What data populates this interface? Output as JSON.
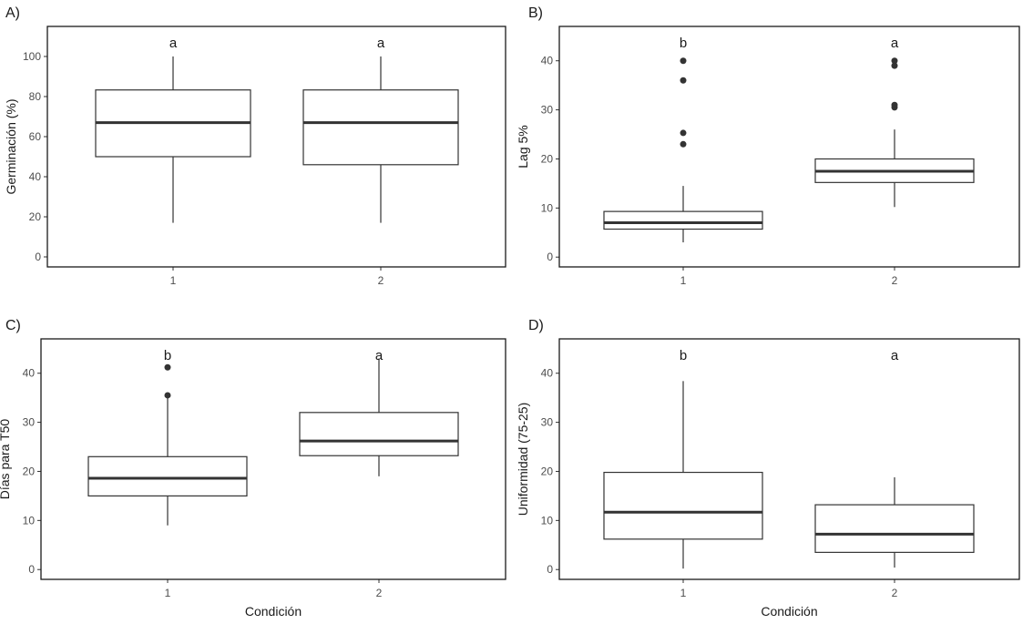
{
  "chart_data": [
    {
      "panel": "A)",
      "type": "boxplot",
      "ylabel": "Germinación (%)",
      "xlabel": "",
      "categories": [
        "1",
        "2"
      ],
      "ylim": [
        -5,
        115
      ],
      "yticks": [
        0,
        20,
        40,
        60,
        80,
        100
      ],
      "boxes": [
        {
          "category": "1",
          "whisker_low": 17,
          "q1": 50,
          "median": 67,
          "q3": 83.3,
          "whisker_high": 100,
          "outliers": [],
          "letter": "a"
        },
        {
          "category": "2",
          "whisker_low": 17,
          "q1": 46,
          "median": 67,
          "q3": 83.3,
          "whisker_high": 100,
          "outliers": [],
          "letter": "a"
        }
      ]
    },
    {
      "panel": "B)",
      "type": "boxplot",
      "ylabel": "Lag 5%",
      "xlabel": "",
      "categories": [
        "1",
        "2"
      ],
      "ylim": [
        -2,
        47
      ],
      "yticks": [
        0,
        10,
        20,
        30,
        40
      ],
      "boxes": [
        {
          "category": "1",
          "whisker_low": 3,
          "q1": 5.7,
          "median": 7,
          "q3": 9.3,
          "whisker_high": 14.5,
          "outliers": [
            23,
            25.3,
            36,
            40
          ],
          "letter": "b"
        },
        {
          "category": "2",
          "whisker_low": 10.2,
          "q1": 15.2,
          "median": 17.5,
          "q3": 20,
          "whisker_high": 26,
          "outliers": [
            30.5,
            31,
            39,
            40
          ],
          "letter": "a"
        }
      ]
    },
    {
      "panel": "C)",
      "type": "boxplot",
      "ylabel": "Días para T50",
      "xlabel": "Condición",
      "categories": [
        "1",
        "2"
      ],
      "ylim": [
        -2,
        47
      ],
      "yticks": [
        0,
        10,
        20,
        30,
        40
      ],
      "boxes": [
        {
          "category": "1",
          "whisker_low": 9,
          "q1": 15,
          "median": 18.6,
          "q3": 23,
          "whisker_high": 35.5,
          "outliers": [
            35.5,
            41.2
          ],
          "letter": "b"
        },
        {
          "category": "2",
          "whisker_low": 19,
          "q1": 23.2,
          "median": 26.2,
          "q3": 32,
          "whisker_high": 43,
          "outliers": [],
          "letter": "a"
        }
      ]
    },
    {
      "panel": "D)",
      "type": "boxplot",
      "ylabel": "Uniformidad (75-25)",
      "xlabel": "Condición",
      "categories": [
        "1",
        "2"
      ],
      "ylim": [
        -2,
        47
      ],
      "yticks": [
        0,
        10,
        20,
        30,
        40
      ],
      "boxes": [
        {
          "category": "1",
          "whisker_low": 0.2,
          "q1": 6.2,
          "median": 11.7,
          "q3": 19.8,
          "whisker_high": 38.4,
          "outliers": [],
          "letter": "b"
        },
        {
          "category": "2",
          "whisker_low": 0.4,
          "q1": 3.5,
          "median": 7.2,
          "q3": 13.2,
          "whisker_high": 18.8,
          "outliers": [],
          "letter": "a"
        }
      ]
    }
  ]
}
